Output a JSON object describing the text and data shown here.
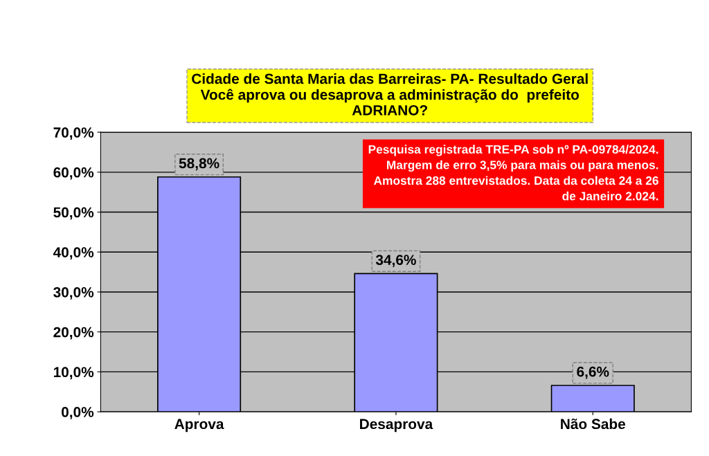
{
  "chart_data": {
    "type": "bar",
    "title": "Cidade de Santa Maria das Barreiras- PA- Resultado Geral\nVocê aprova ou desaprova a administração do  prefeito\nADRIANO?",
    "categories": [
      "Aprova",
      "Desaprova",
      "Não Sabe"
    ],
    "values": [
      58.8,
      34.6,
      6.6
    ],
    "value_labels": [
      "58,8%",
      "34,6%",
      "6,6%"
    ],
    "color": "#9999ff",
    "ylim": [
      0,
      70
    ],
    "yticks": [
      {
        "value": 0,
        "label": "0,0%"
      },
      {
        "value": 10,
        "label": "10,0%"
      },
      {
        "value": 20,
        "label": "20,0%"
      },
      {
        "value": 30,
        "label": "30,0%"
      },
      {
        "value": 40,
        "label": "40,0%"
      },
      {
        "value": 50,
        "label": "50,0%"
      },
      {
        "value": 60,
        "label": "60,0%"
      },
      {
        "value": 70,
        "label": "70,0%"
      }
    ],
    "grid": "y",
    "annotations": [
      "Pesquisa registrada TRE-PA sob nº PA-09784/2024.\nMargem de erro 3,5% para mais ou para menos.\nAmostra 288 entrevistados. Data da coleta 24 a 26\nde Janeiro 2.024."
    ]
  }
}
